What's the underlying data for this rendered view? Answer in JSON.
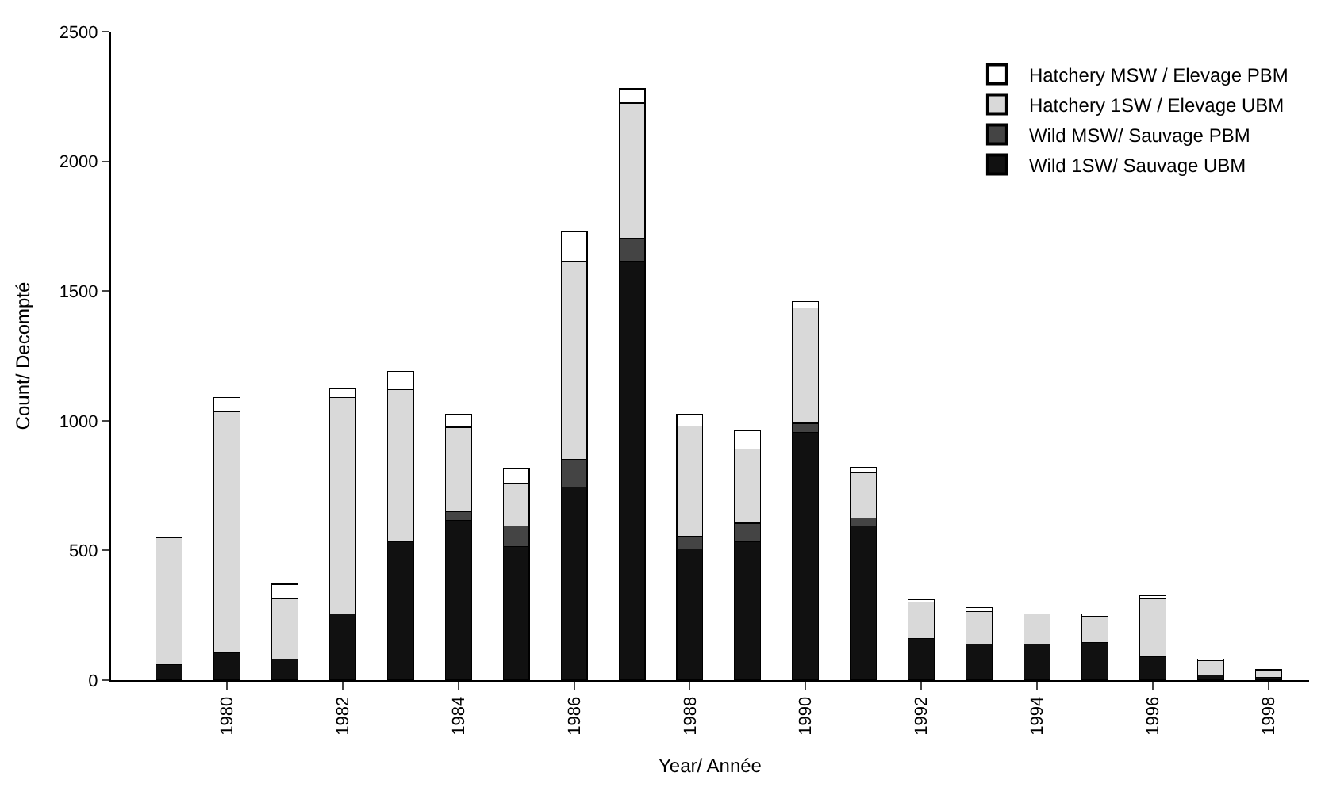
{
  "chart_data": {
    "type": "bar",
    "stacked": true,
    "xlabel": "Year/ Année",
    "ylabel": "Count/ Decompté",
    "categories": [
      null,
      "1980",
      null,
      "1982",
      null,
      "1984",
      null,
      "1986",
      null,
      "1988",
      null,
      "1990",
      null,
      "1992",
      null,
      "1994",
      null,
      "1996",
      null,
      "1998"
    ],
    "series": [
      {
        "name": "Wild 1SW/ Sauvage UBM",
        "color": "#111111",
        "values": [
          60,
          105,
          80,
          255,
          535,
          615,
          515,
          745,
          1615,
          505,
          535,
          955,
          595,
          160,
          140,
          140,
          145,
          90,
          20,
          10
        ]
      },
      {
        "name": "Wild MSW/ Sauvage PBM",
        "color": "#444444",
        "values": [
          0,
          0,
          0,
          0,
          0,
          35,
          80,
          105,
          90,
          50,
          70,
          35,
          30,
          0,
          0,
          0,
          0,
          0,
          0,
          0
        ]
      },
      {
        "name": "Hatchery 1SW / Elevage UBM",
        "color": "#d9d9d9",
        "values": [
          490,
          930,
          235,
          835,
          585,
          325,
          165,
          765,
          520,
          425,
          285,
          445,
          175,
          140,
          125,
          115,
          100,
          225,
          55,
          25
        ]
      },
      {
        "name": "Hatchery MSW / Elevage PBM",
        "color": "#ffffff",
        "values": [
          0,
          55,
          55,
          35,
          70,
          50,
          55,
          115,
          55,
          45,
          70,
          25,
          20,
          10,
          15,
          15,
          10,
          10,
          5,
          5
        ]
      }
    ],
    "ylim": [
      0,
      2500
    ],
    "yticks": [
      0,
      500,
      1000,
      1500,
      2000,
      2500
    ],
    "legend": "top right"
  }
}
